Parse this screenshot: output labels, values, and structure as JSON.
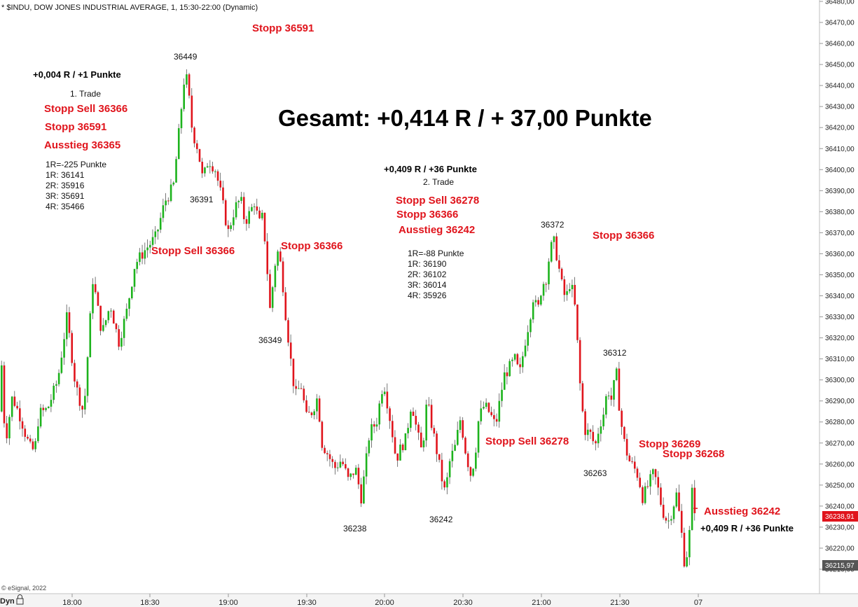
{
  "header": {
    "title": "* $INDU, DOW JONES INDUSTRIAL AVERAGE, 1, 15:30-22:00 (Dynamic)"
  },
  "credit": "© eSignal, 2022",
  "bottom_left_label": "Dyn",
  "headline": "Gesamt: +0,414 R / + 37,00 Punkte",
  "price_tags": {
    "last": {
      "text": "36238,91",
      "color": "#e0141c"
    },
    "cursor": {
      "text": "36215,97",
      "color": "#555555"
    }
  },
  "annotations": {
    "trade1_result": "+0,004 R / +1 Punkte",
    "trade1_label": "1. Trade",
    "trade1_stop_sell": "Stopp Sell 36366",
    "trade1_stop": "Stopp 36591",
    "trade1_exit": "Ausstieg 36365",
    "trade1_levels": [
      "1R=-225 Punkte",
      "1R: 36141",
      "2R: 35916",
      "3R: 35691",
      "4R: 35466"
    ],
    "top_stop": "Stopp 36591",
    "chart_stop_sell_1": "Stopp Sell 36366",
    "chart_stop_1": "Stopp 36366",
    "trade2_result": "+0,409 R / +36 Punkte",
    "trade2_label": "2. Trade",
    "trade2_stop_sell": "Stopp Sell 36278",
    "trade2_stop": "Stopp 36366",
    "trade2_exit": "Ausstieg 36242",
    "trade2_levels": [
      "1R=-88 Punkte",
      "1R: 36190",
      "2R: 36102",
      "3R: 36014",
      "4R: 35926"
    ],
    "chart_stop_2": "Stopp 36366",
    "chart_stop_sell_2": "Stopp Sell 36278",
    "chart_stop_3": "Stopp 36269",
    "chart_stop_4": "Stopp 36268",
    "final_exit": "Ausstieg 36242",
    "final_result": "+0,409 R / +36 Punkte"
  },
  "chart_data": {
    "type": "candlestick",
    "instrument": "$INDU",
    "interval": "1 minute",
    "ylim": [
      36205,
      36480
    ],
    "y_ticks": [
      "36210,00",
      "36220,00",
      "36230,00",
      "36240,00",
      "36250,00",
      "36260,00",
      "36270,00",
      "36280,00",
      "36290,00",
      "36300,00",
      "36310,00",
      "36320,00",
      "36330,00",
      "36340,00",
      "36350,00",
      "36360,00",
      "36370,00",
      "36380,00",
      "36390,00",
      "36400,00",
      "36410,00",
      "36420,00",
      "36430,00",
      "36440,00",
      "36450,00",
      "36460,00",
      "36470,00",
      "36480,00"
    ],
    "x_ticks": [
      "18:00",
      "18:30",
      "19:00",
      "19:30",
      "20:00",
      "20:30",
      "21:00",
      "21:30",
      "07"
    ],
    "extreme_labels": [
      "36449",
      "36391",
      "36349",
      "36238",
      "36242",
      "36372",
      "36312",
      "36263"
    ],
    "up_color": "#1db31d",
    "down_color": "#e0141c",
    "wick_color": "#555555",
    "path_points": [
      [
        0,
        36285
      ],
      [
        4,
        36312
      ],
      [
        10,
        36270
      ],
      [
        20,
        36292
      ],
      [
        32,
        36282
      ],
      [
        38,
        36275
      ],
      [
        45,
        36268
      ],
      [
        52,
        36266
      ],
      [
        58,
        36284
      ],
      [
        70,
        36286
      ],
      [
        85,
        36300
      ],
      [
        98,
        36330
      ],
      [
        110,
        36298
      ],
      [
        122,
        36284
      ],
      [
        135,
        36348
      ],
      [
        148,
        36322
      ],
      [
        160,
        36336
      ],
      [
        172,
        36318
      ],
      [
        183,
        36332
      ],
      [
        195,
        36355
      ],
      [
        210,
        36362
      ],
      [
        225,
        36368
      ],
      [
        238,
        36385
      ],
      [
        250,
        36392
      ],
      [
        258,
        36418
      ],
      [
        266,
        36445
      ],
      [
        270,
        36442
      ],
      [
        277,
        36418
      ],
      [
        285,
        36410
      ],
      [
        292,
        36395
      ],
      [
        300,
        36405
      ],
      [
        310,
        36400
      ],
      [
        318,
        36388
      ],
      [
        328,
        36370
      ],
      [
        338,
        36382
      ],
      [
        346,
        36386
      ],
      [
        352,
        36375
      ],
      [
        360,
        36380
      ],
      [
        366,
        36385
      ],
      [
        372,
        36374
      ],
      [
        378,
        36378
      ],
      [
        384,
        36352
      ],
      [
        388,
        36333
      ],
      [
        395,
        36355
      ],
      [
        400,
        36362
      ],
      [
        405,
        36350
      ],
      [
        410,
        36332
      ],
      [
        418,
        36308
      ],
      [
        424,
        36292
      ],
      [
        432,
        36298
      ],
      [
        440,
        36282
      ],
      [
        448,
        36285
      ],
      [
        456,
        36292
      ],
      [
        462,
        36270
      ],
      [
        470,
        36265
      ],
      [
        480,
        36258
      ],
      [
        490,
        36262
      ],
      [
        500,
        36252
      ],
      [
        510,
        36258
      ],
      [
        518,
        36244
      ],
      [
        524,
        36258
      ],
      [
        530,
        36275
      ],
      [
        540,
        36280
      ],
      [
        550,
        36300
      ],
      [
        556,
        36288
      ],
      [
        562,
        36276
      ],
      [
        568,
        36262
      ],
      [
        575,
        36268
      ],
      [
        582,
        36272
      ],
      [
        590,
        36290
      ],
      [
        598,
        36275
      ],
      [
        605,
        36265
      ],
      [
        612,
        36290
      ],
      [
        618,
        36280
      ],
      [
        625,
        36268
      ],
      [
        632,
        36255
      ],
      [
        638,
        36246
      ],
      [
        645,
        36262
      ],
      [
        652,
        36268
      ],
      [
        660,
        36282
      ],
      [
        666,
        36268
      ],
      [
        674,
        36255
      ],
      [
        680,
        36262
      ],
      [
        686,
        36282
      ],
      [
        694,
        36288
      ],
      [
        702,
        36284
      ],
      [
        710,
        36278
      ],
      [
        716,
        36290
      ],
      [
        722,
        36302
      ],
      [
        730,
        36306
      ],
      [
        738,
        36310
      ],
      [
        744,
        36302
      ],
      [
        752,
        36318
      ],
      [
        758,
        36328
      ],
      [
        764,
        36340
      ],
      [
        770,
        36332
      ],
      [
        776,
        36345
      ],
      [
        782,
        36348
      ],
      [
        788,
        36362
      ],
      [
        793,
        36366
      ],
      [
        798,
        36358
      ],
      [
        804,
        36346
      ],
      [
        810,
        36338
      ],
      [
        816,
        36346
      ],
      [
        822,
        36340
      ],
      [
        828,
        36312
      ],
      [
        832,
        36290
      ],
      [
        838,
        36276
      ],
      [
        846,
        36274
      ],
      [
        852,
        36268
      ],
      [
        858,
        36278
      ],
      [
        864,
        36284
      ],
      [
        870,
        36296
      ],
      [
        876,
        36290
      ],
      [
        882,
        36305
      ],
      [
        888,
        36282
      ],
      [
        894,
        36270
      ],
      [
        900,
        36262
      ],
      [
        908,
        36258
      ],
      [
        914,
        36254
      ],
      [
        920,
        36244
      ],
      [
        928,
        36250
      ],
      [
        936,
        36256
      ],
      [
        942,
        36248
      ],
      [
        948,
        36238
      ],
      [
        956,
        36232
      ],
      [
        962,
        36238
      ],
      [
        968,
        36246
      ],
      [
        974,
        36232
      ],
      [
        980,
        36212
      ],
      [
        986,
        36222
      ],
      [
        990,
        36248
      ],
      [
        993,
        36239
      ]
    ]
  }
}
